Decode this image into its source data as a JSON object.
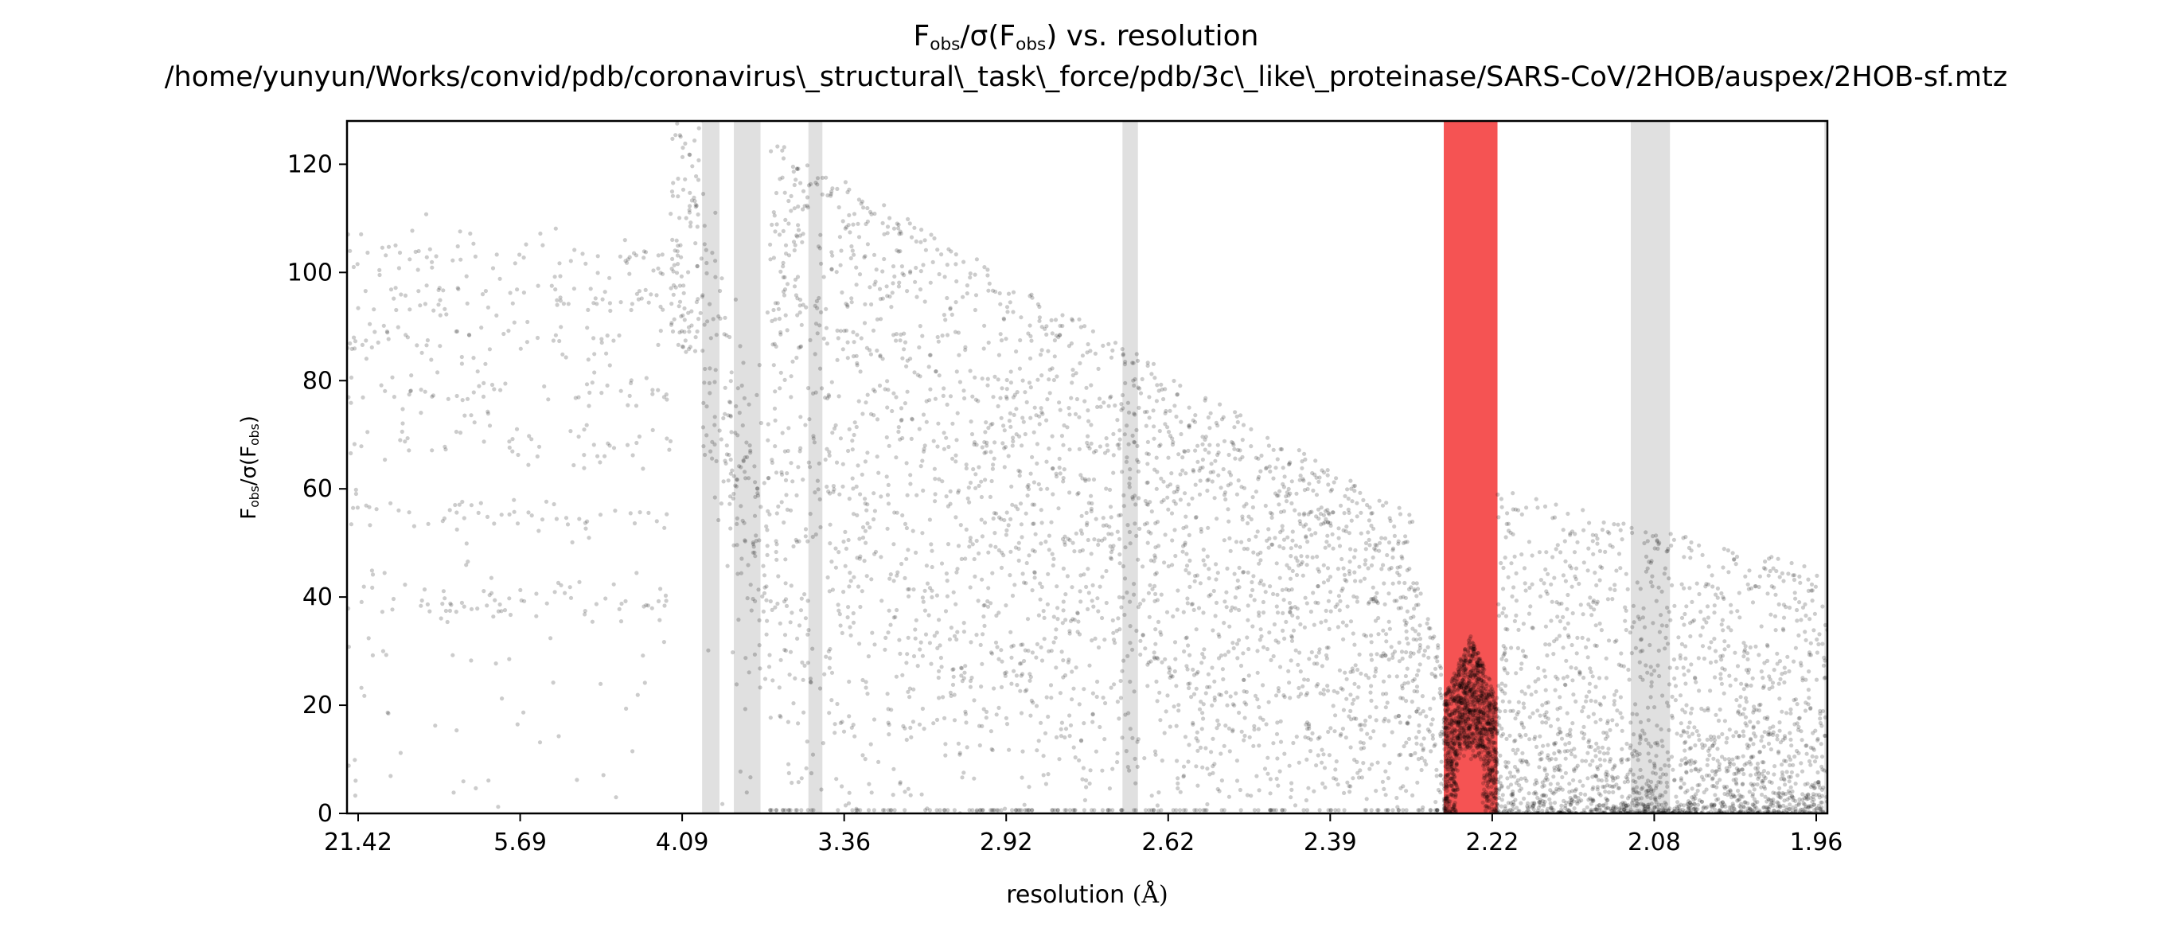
{
  "chart_data": {
    "type": "scatter",
    "title": "F_obs/σ(F_obs) vs. resolution",
    "title_parts": {
      "a": "F",
      "a_sub": "obs",
      "b": "/σ(F",
      "b_sub": "obs",
      "c": ") vs. resolution"
    },
    "subtitle": "/home/yunyun/Works/convid/pdb/coronavirus\\_structural\\_task\\_force/pdb/3c\\_like\\_proteinase/SARS-CoV/2HOB/auspex/2HOB-sf.mtz",
    "xlabel": "resolution (Å)",
    "xlabel_parts": {
      "text": "resolution ",
      "unit": "(Å)"
    },
    "ylabel": "F_obs/σ(F_obs)",
    "ylabel_parts": {
      "a": "F",
      "a_sub": "obs",
      "b": "/σ(F",
      "b_sub": "obs",
      "c": ")"
    },
    "x_axis_scale": "1/d^2",
    "x_tick_labels": [
      "21.42",
      "5.69",
      "4.09",
      "3.36",
      "2.92",
      "2.62",
      "2.39",
      "2.22",
      "2.08",
      "1.96"
    ],
    "xlim_resolution": [
      21.42,
      1.955
    ],
    "y_ticks": [
      0,
      20,
      40,
      60,
      80,
      100,
      120
    ],
    "ylim": [
      0,
      128
    ],
    "point_color": "#000000",
    "point_alpha": 0.2,
    "ice_ring_color": "#e0e0e0",
    "flagged_ring_color": "#f44a4a",
    "ice_rings": [
      {
        "from": 3.94,
        "to": 3.85
      },
      {
        "from": 3.78,
        "to": 3.66
      },
      {
        "from": 3.47,
        "to": 3.42
      },
      {
        "from": 2.691,
        "to": 2.665
      },
      {
        "from": 2.098,
        "to": 2.067
      },
      {
        "from": 1.957,
        "to": 1.955
      }
    ],
    "flagged_rings": [
      {
        "from": 2.268,
        "to": 2.215
      }
    ],
    "series": [
      {
        "segments": [
          {
            "d_from": 21.42,
            "d_to": 4.12,
            "pattern": "stripes",
            "stripes": [
              103,
              95,
              87,
              78,
              68,
              55,
              39
            ],
            "spread": 2,
            "noise_max": 112,
            "density": 0.55
          },
          {
            "d_from": 4.12,
            "d_to": 3.95,
            "pattern": "band",
            "y_low": 85,
            "y_high": 128,
            "density": 1.2
          },
          {
            "d_from": 3.95,
            "d_to": 3.62,
            "pattern": "declining",
            "y_start": 95,
            "y_end": 40,
            "spread": 14,
            "density": 1.0
          },
          {
            "d_from": 3.62,
            "d_to": 2.3,
            "pattern": "cloud",
            "y_start_high": 125,
            "y_end_high": 55,
            "y_low": 0,
            "density": 1.6
          },
          {
            "d_from": 2.3,
            "d_to": 2.27,
            "pattern": "cloud",
            "y_start_high": 45,
            "y_end_high": 30,
            "y_low": 0,
            "density": 1.4
          },
          {
            "d_from": 2.268,
            "d_to": 2.215,
            "pattern": "dense-core",
            "y_low": 0,
            "y_high": 33,
            "density": 2.0
          },
          {
            "d_from": 2.215,
            "d_to": 1.955,
            "pattern": "decay",
            "y_start_high": 60,
            "y_end_high": 45,
            "density": 2.2
          }
        ]
      }
    ]
  }
}
